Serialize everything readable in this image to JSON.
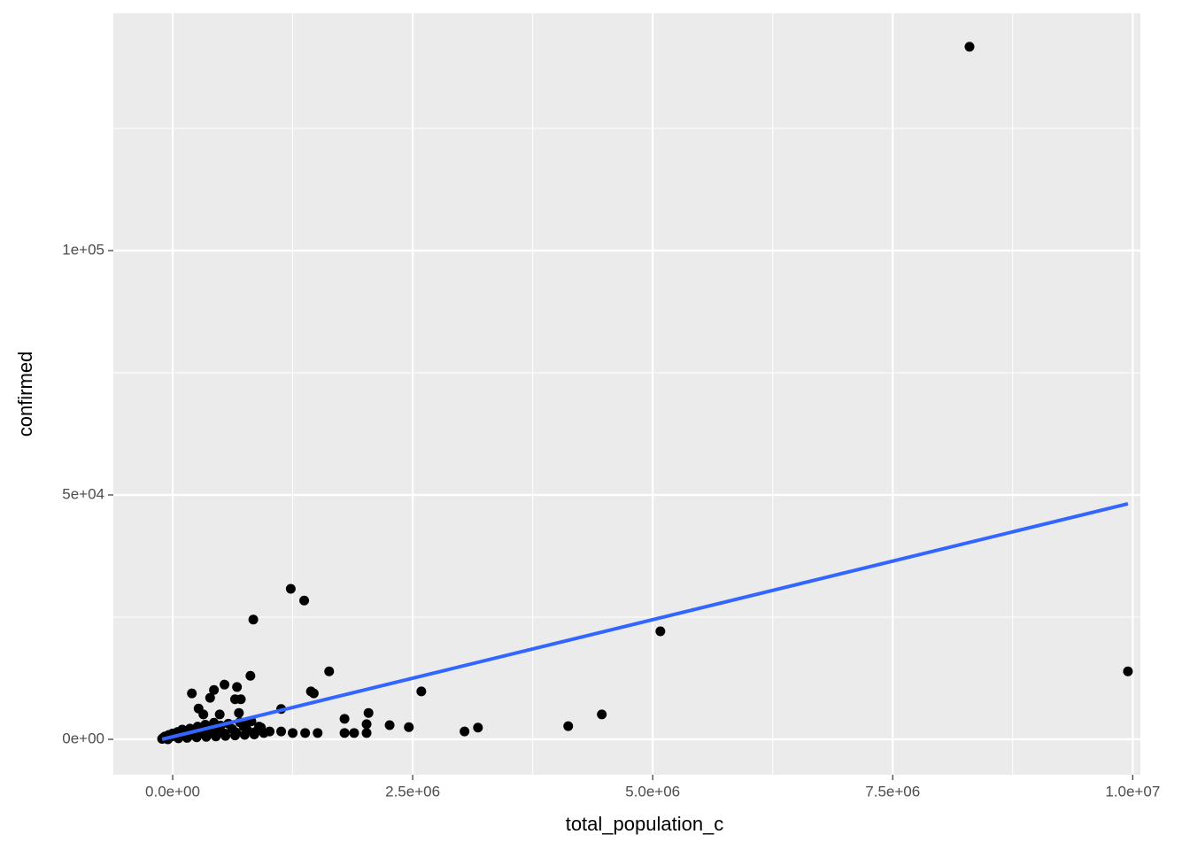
{
  "chart_data": {
    "type": "scatter",
    "x_label": "total_population_c",
    "y_label": "confirmed",
    "xlim": [
      -618000,
      10080000
    ],
    "ylim": [
      -7246,
      148550
    ],
    "xticks": [
      {
        "value": 0,
        "label": "0.0e+00"
      },
      {
        "value": 2500000,
        "label": "2.5e+06"
      },
      {
        "value": 5000000,
        "label": "5.0e+06"
      },
      {
        "value": 7500000,
        "label": "7.5e+06"
      },
      {
        "value": 10000000,
        "label": "1.0e+07"
      }
    ],
    "yticks": [
      {
        "value": 0,
        "label": "0e+00"
      },
      {
        "value": 50000,
        "label": "5e+04"
      },
      {
        "value": 100000,
        "label": "1e+05"
      }
    ],
    "x_minor_ticks": [
      1250000,
      3750000,
      6250000,
      8750000
    ],
    "y_minor_ticks": [
      25000,
      75000,
      125000
    ],
    "grid": true,
    "color": "#000000",
    "x": [
      8300000,
      9950000,
      5080000,
      4470000,
      4120000,
      3180000,
      3040000,
      2590000,
      2460000,
      2260000,
      2040000,
      2020000,
      2020000,
      1890000,
      1790000,
      1790000,
      1630000,
      1510000,
      1470000,
      1440000,
      1380000,
      1370000,
      1230000,
      1250000,
      1130000,
      1130000,
      840000,
      810000,
      670000,
      710000,
      650000,
      540000,
      430000,
      390000,
      200000,
      270000,
      320000,
      490000,
      690000,
      800000,
      920000,
      1010000,
      -110000,
      -100000,
      -90000,
      -80000,
      -60000,
      -40000,
      -20000,
      0,
      20000,
      50000,
      70000,
      100000,
      120000,
      150000,
      180000,
      200000,
      230000,
      260000,
      280000,
      310000,
      340000,
      370000,
      400000,
      430000,
      460000,
      500000,
      540000,
      580000,
      620000,
      660000,
      700000,
      740000,
      780000,
      820000,
      860000,
      900000,
      950000,
      -50000,
      60000,
      150000,
      250000,
      350000,
      450000,
      550000,
      650000,
      750000,
      850000
    ],
    "values": [
      141700,
      13900,
      22100,
      5100,
      2700,
      2400,
      1600,
      9800,
      2500,
      2900,
      5400,
      3100,
      1300,
      1300,
      4200,
      1300,
      13900,
      1300,
      9400,
      9800,
      1300,
      28400,
      30800,
      1300,
      6200,
      1600,
      24500,
      13000,
      10700,
      8200,
      8200,
      11200,
      10100,
      8500,
      9400,
      6300,
      5100,
      5100,
      5400,
      3600,
      2400,
      1600,
      100,
      300,
      200,
      600,
      400,
      900,
      500,
      1200,
      700,
      1500,
      900,
      2000,
      1100,
      1600,
      2200,
      900,
      1800,
      2600,
      1300,
      2000,
      3000,
      1500,
      2400,
      3400,
      1700,
      2800,
      1200,
      3200,
      2100,
      1400,
      3500,
      2600,
      1800,
      3700,
      1500,
      2600,
      1300,
      0,
      200,
      300,
      400,
      500,
      600,
      700,
      800,
      900,
      1000
    ],
    "fit": {
      "x": [
        -110000,
        9950000
      ],
      "y": [
        0,
        48200
      ],
      "color": "#3366FF"
    }
  }
}
